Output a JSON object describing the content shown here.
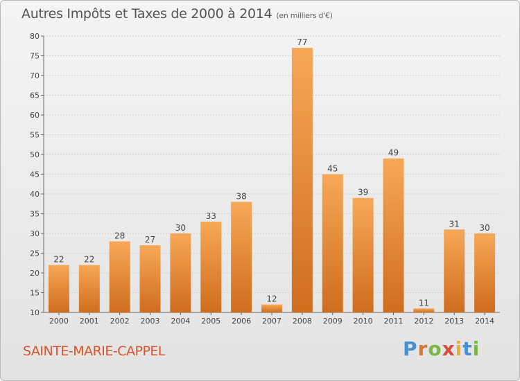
{
  "header": {
    "title": "Autres Impôts et Taxes de 2000 à 2014",
    "subtitle": "(en milliers d'€)"
  },
  "footer": {
    "location": "SAINTE-MARIE-CAPPEL",
    "logo": "Proxiti",
    "logo_colors": [
      "#4a8fd0",
      "#e0752f",
      "#7ab648",
      "#d94c3a",
      "#e6b22e",
      "#4a8fd0",
      "#7ab648"
    ]
  },
  "colors": {
    "bar_light": "#f6a653",
    "bar_dark": "#d0701f",
    "title": "#555555",
    "location": "#d9542c"
  },
  "chart_data": {
    "type": "bar",
    "title": "Autres Impôts et Taxes de 2000 à 2014",
    "subtitle": "(en milliers d'€)",
    "categories": [
      "2000",
      "2001",
      "2002",
      "2003",
      "2004",
      "2005",
      "2006",
      "2007",
      "2008",
      "2009",
      "2010",
      "2011",
      "2012",
      "2013",
      "2014"
    ],
    "values": [
      22,
      22,
      28,
      27,
      30,
      33,
      38,
      12,
      77,
      45,
      39,
      49,
      11,
      31,
      30
    ],
    "data_labels": [
      "22",
      "22",
      "28",
      "27",
      "30",
      "33",
      "38",
      "12",
      "77",
      "45",
      "39",
      "49",
      "11",
      "31",
      "30"
    ],
    "ylim": [
      10,
      80
    ],
    "yticks": [
      10,
      15,
      20,
      25,
      30,
      35,
      40,
      45,
      50,
      55,
      60,
      65,
      70,
      75,
      80
    ],
    "grid": true,
    "legend": "none"
  }
}
